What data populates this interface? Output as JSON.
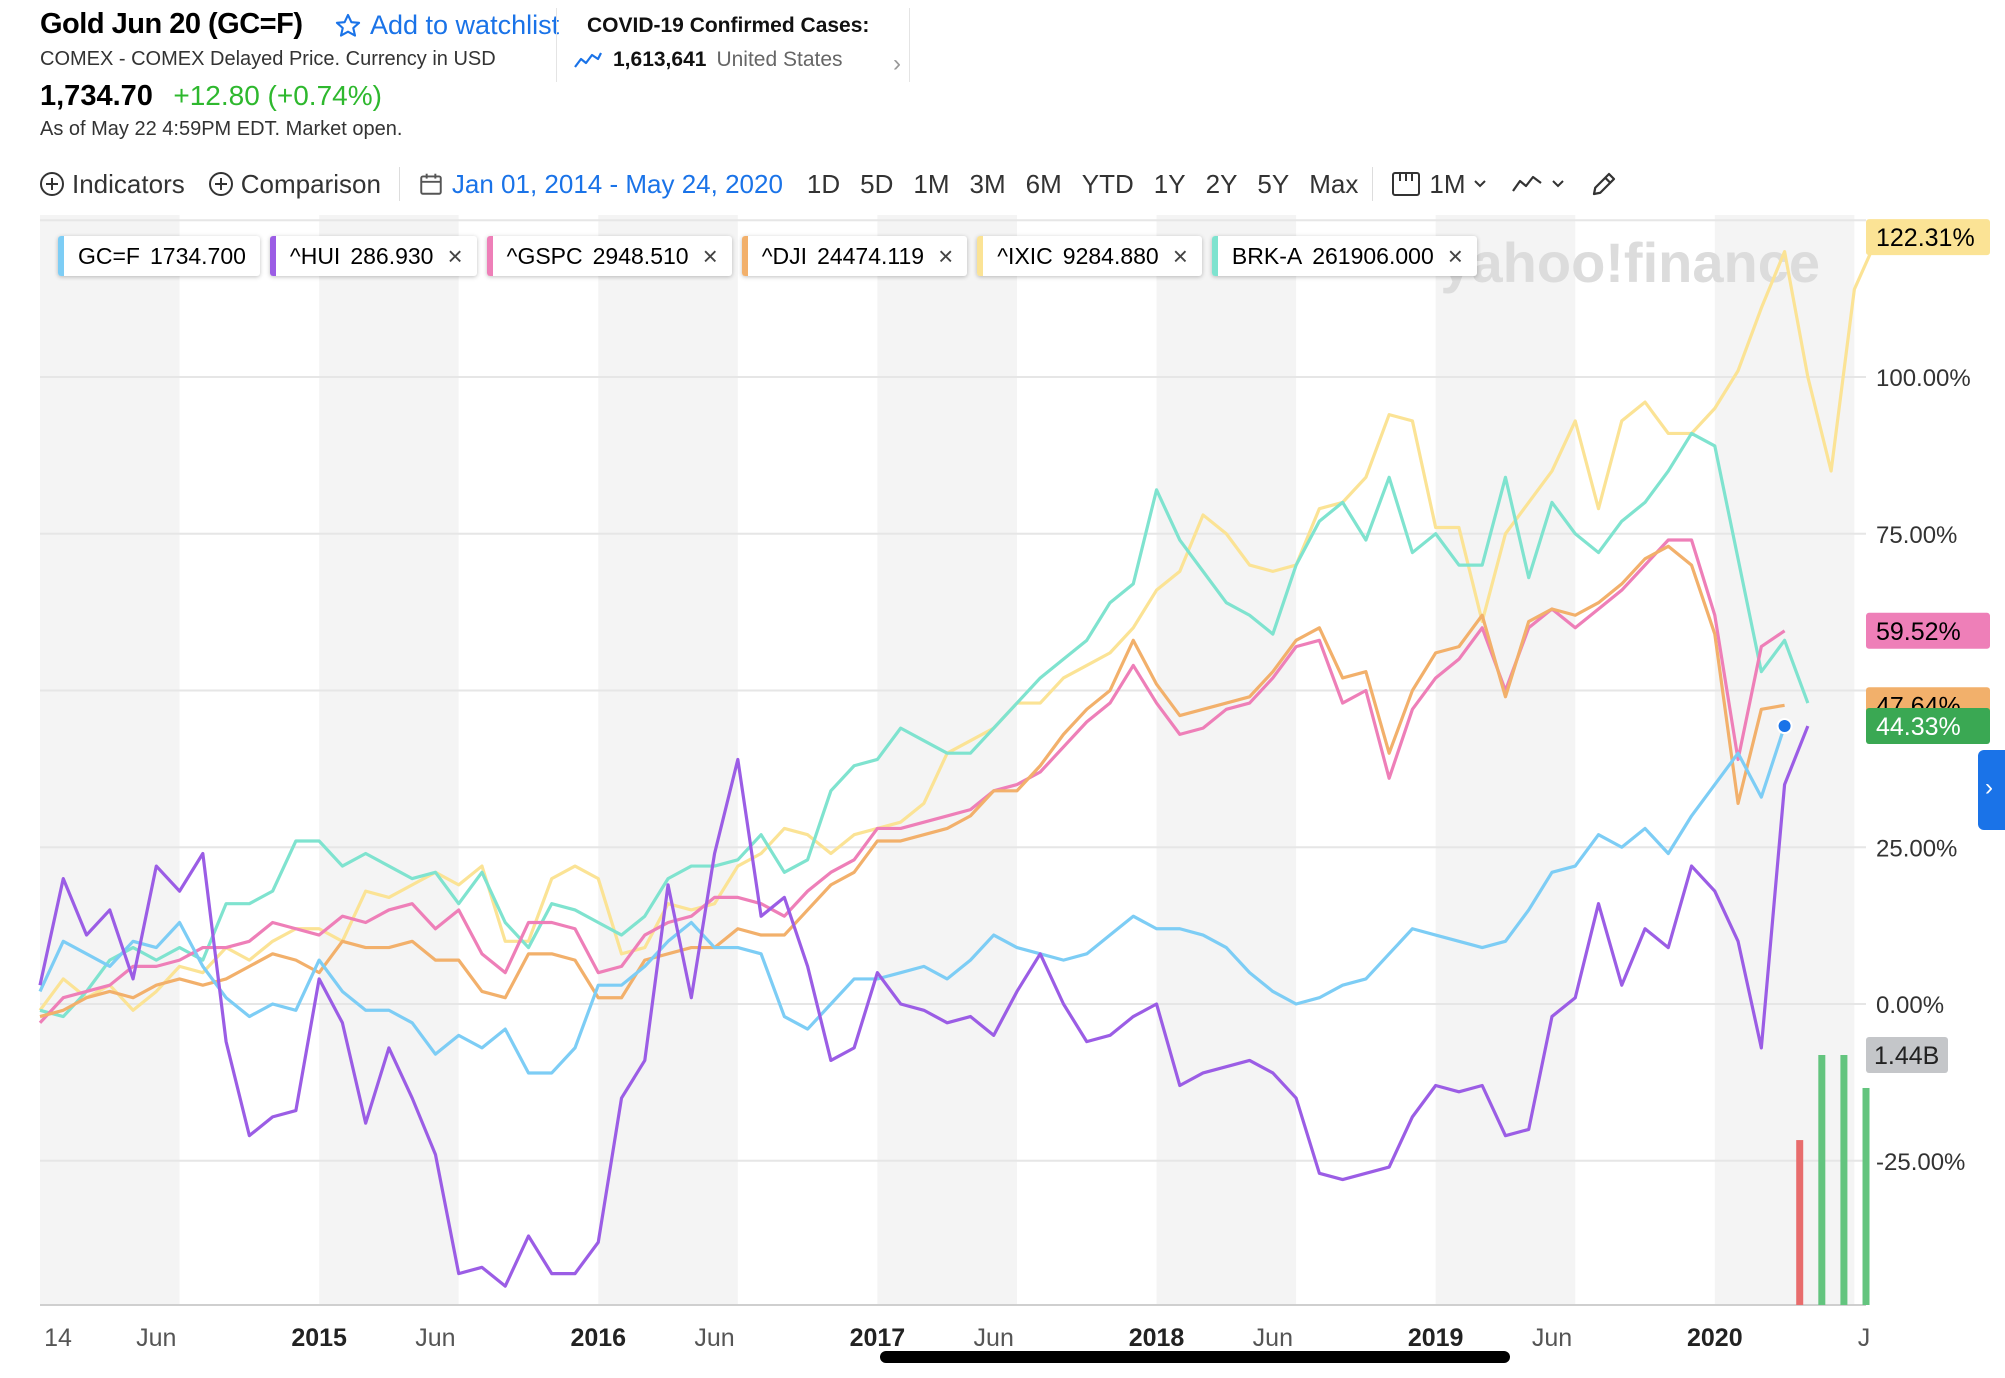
{
  "header": {
    "title": "Gold Jun 20 (GC=F)",
    "watchlist_label": "Add to watchlist",
    "subtitle": "COMEX - COMEX Delayed Price. Currency in USD",
    "price": "1,734.70",
    "change": "+12.80 (+0.74%)",
    "as_of": "As of May 22 4:59PM EDT. Market open."
  },
  "covid": {
    "title": "COVID-19 Confirmed Cases:",
    "count": "1,613,641",
    "country": "United States"
  },
  "toolbar": {
    "indicators_label": "Indicators",
    "comparison_label": "Comparison",
    "date_range": "Jan 01, 2014 - May 24, 2020",
    "periods": [
      "1D",
      "5D",
      "1M",
      "3M",
      "6M",
      "YTD",
      "1Y",
      "2Y",
      "5Y",
      "Max"
    ],
    "interval": "1M"
  },
  "icons": [
    "star-icon",
    "chart-trend-icon",
    "chevron-right-icon",
    "plus-circle-icon",
    "calendar-icon",
    "candlestick-icon",
    "chevron-down-icon",
    "line-chart-icon",
    "pencil-icon"
  ],
  "chart_data": {
    "type": "line",
    "watermark": "yahoo!finance",
    "y_unit": "% change",
    "ylim": [
      -38,
      135
    ],
    "y_ticks": [
      100,
      75,
      25,
      0,
      -25
    ],
    "y_tick_labels": [
      "100.00%",
      "75.00%",
      "25.00%",
      "0.00%",
      "-25.00%"
    ],
    "x_tick_labels": [
      "14",
      "Jun",
      "2015",
      "Jun",
      "2016",
      "Jun",
      "2017",
      "Jun",
      "2018",
      "Jun",
      "2019",
      "Jun",
      "2020",
      "J"
    ],
    "x_tick_months": [
      0,
      5,
      12,
      17,
      24,
      29,
      36,
      41,
      48,
      53,
      60,
      65,
      72,
      77
    ],
    "legend": [
      {
        "symbol": "GC=F",
        "value": "1734.700",
        "color": "#7dcdf5",
        "removable": false
      },
      {
        "symbol": "^HUI",
        "value": "286.930",
        "color": "#9b5de5",
        "removable": true
      },
      {
        "symbol": "^GSPC",
        "value": "2948.510",
        "color": "#ee7fb8",
        "removable": true
      },
      {
        "symbol": "^DJI",
        "value": "24474.119",
        "color": "#f2b06b",
        "removable": true
      },
      {
        "symbol": "^IXIC",
        "value": "9284.880",
        "color": "#fbe395",
        "removable": true
      },
      {
        "symbol": "BRK-A",
        "value": "261906.000",
        "color": "#7fe3cf",
        "removable": true
      }
    ],
    "series": [
      {
        "name": "^IXIC",
        "color": "#fbe395",
        "end_label": "122.31%",
        "end_value": 122.31,
        "values": [
          -1,
          4,
          1,
          3,
          -1,
          2,
          6,
          5,
          9,
          7,
          10,
          12,
          12,
          10,
          18,
          17,
          19,
          21,
          19,
          22,
          10,
          10,
          20,
          22,
          20,
          8,
          9,
          16,
          15,
          16,
          22,
          24,
          28,
          27,
          24,
          27,
          28,
          29,
          32,
          40,
          42,
          44,
          48,
          48,
          52,
          54,
          56,
          60,
          66,
          69,
          78,
          75,
          70,
          69,
          70,
          79,
          80,
          84,
          94,
          93,
          76,
          76,
          61,
          75,
          80,
          85,
          93,
          79,
          93,
          96,
          91,
          91,
          95,
          101,
          111,
          120,
          100,
          85,
          114,
          122.31
        ]
      },
      {
        "name": "BRK-A",
        "color": "#7fe3cf",
        "end_label": "",
        "end_value": 48,
        "values": [
          -1,
          -2,
          2,
          7,
          9,
          7,
          9,
          7,
          16,
          16,
          18,
          26,
          26,
          22,
          24,
          22,
          20,
          21,
          16,
          21,
          13,
          9,
          16,
          15,
          13,
          11,
          14,
          20,
          22,
          22,
          23,
          27,
          21,
          23,
          34,
          38,
          39,
          44,
          42,
          40,
          40,
          44,
          48,
          52,
          55,
          58,
          64,
          67,
          82,
          74,
          69,
          64,
          62,
          59,
          70,
          77,
          80,
          74,
          84,
          72,
          75,
          70,
          70,
          84,
          68,
          80,
          75,
          72,
          77,
          80,
          85,
          91,
          89,
          71,
          53,
          58,
          48
        ]
      },
      {
        "name": "^GSPC",
        "color": "#ee7fb8",
        "end_label": "59.52%",
        "end_value": 59.52,
        "values": [
          -3,
          1,
          2,
          3,
          6,
          6,
          7,
          9,
          9,
          10,
          13,
          12,
          11,
          14,
          13,
          15,
          16,
          12,
          15,
          8,
          5,
          13,
          13,
          12,
          5,
          6,
          11,
          13,
          14,
          17,
          17,
          16,
          14,
          18,
          21,
          23,
          28,
          28,
          29,
          30,
          31,
          34,
          35,
          37,
          41,
          45,
          48,
          54,
          48,
          43,
          44,
          47,
          48,
          52,
          57,
          58,
          48,
          50,
          36,
          47,
          52,
          55,
          60,
          50,
          60,
          63,
          60,
          63,
          66,
          70,
          74,
          74,
          62,
          39,
          57,
          59.52
        ]
      },
      {
        "name": "^DJI",
        "color": "#f2b06b",
        "end_label": "47.64%",
        "end_value": 47.64,
        "values": [
          -2,
          -1,
          1,
          2,
          1,
          3,
          4,
          3,
          4,
          6,
          8,
          7,
          5,
          10,
          9,
          9,
          10,
          7,
          7,
          2,
          1,
          8,
          8,
          7,
          1,
          1,
          7,
          8,
          9,
          9,
          12,
          11,
          11,
          15,
          19,
          21,
          26,
          26,
          27,
          28,
          30,
          34,
          34,
          38,
          43,
          47,
          50,
          58,
          51,
          46,
          47,
          48,
          49,
          53,
          58,
          60,
          52,
          53,
          40,
          50,
          56,
          57,
          62,
          49,
          61,
          63,
          62,
          64,
          67,
          71,
          73,
          70,
          59,
          32,
          47,
          47.64
        ]
      },
      {
        "name": "GC=F",
        "color": "#7dcdf5",
        "end_label": "44.33%",
        "end_value": 44.33,
        "values": [
          2,
          10,
          8,
          6,
          10,
          9,
          13,
          6,
          1,
          -2,
          0,
          -1,
          7,
          2,
          -1,
          -1,
          -3,
          -8,
          -5,
          -7,
          -4,
          -11,
          -11,
          -7,
          3,
          3,
          6,
          10,
          13,
          9,
          9,
          8,
          -2,
          -4,
          0,
          4,
          4,
          5,
          6,
          4,
          7,
          11,
          9,
          8,
          7,
          8,
          11,
          14,
          12,
          12,
          11,
          9,
          5,
          2,
          0,
          1,
          3,
          4,
          8,
          12,
          11,
          10,
          9,
          10,
          15,
          21,
          22,
          27,
          25,
          28,
          24,
          30,
          35,
          40,
          33,
          44.33
        ]
      },
      {
        "name": "^HUI",
        "color": "#9b5de5",
        "end_label": "",
        "end_value": 44.33,
        "values": [
          3,
          20,
          11,
          15,
          4,
          22,
          18,
          24,
          -6,
          -21,
          -18,
          -17,
          4,
          -3,
          -19,
          -7,
          -15,
          -24,
          -43,
          -42,
          -45,
          -37,
          -43,
          -43,
          -38,
          -15,
          -9,
          19,
          1,
          24,
          39,
          14,
          17,
          6,
          -9,
          -7,
          5,
          0,
          -1,
          -3,
          -2,
          -5,
          2,
          8,
          0,
          -6,
          -5,
          -2,
          0,
          -13,
          -11,
          -10,
          -9,
          -11,
          -15,
          -27,
          -28,
          -27,
          -26,
          -18,
          -13,
          -14,
          -13,
          -21,
          -20,
          -2,
          1,
          16,
          3,
          12,
          9,
          22,
          18,
          10,
          -7,
          35,
          44.33
        ]
      }
    ],
    "volume_label": "1.44B",
    "volume_bars": [
      {
        "color": "#e86c6c",
        "value": 0.95
      },
      {
        "color": "#63c47e",
        "value": 1.44
      },
      {
        "color": "#63c47e",
        "value": 1.44
      },
      {
        "color": "#63c47e",
        "value": 1.25
      }
    ],
    "bars_start_month": 75.5,
    "current_value_marker": 44.33
  }
}
